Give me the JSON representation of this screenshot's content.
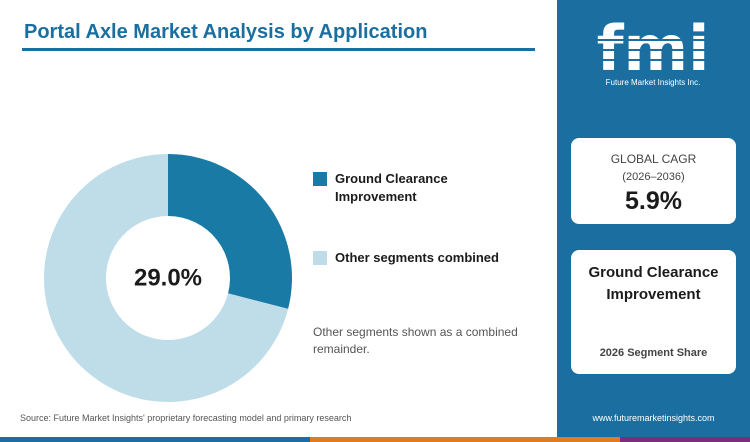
{
  "title": "Portal Axle Market Analysis by Application",
  "chart_data": {
    "type": "pie",
    "style": "donut",
    "categories": [
      "Ground Clearance Improvement",
      "Other segments combined"
    ],
    "values": [
      29.0,
      71.0
    ],
    "colors": [
      "#1a7aa6",
      "#bedde9"
    ],
    "center_label": "29.0%",
    "legend_position": "right"
  },
  "legend": [
    {
      "label": "Ground Clearance Improvement",
      "color": "#1a7aa6"
    },
    {
      "label": "Other segments combined",
      "color": "#bedde9"
    }
  ],
  "note": "Other segments shown as a combined remainder.",
  "source": "Source: Future Market Insights' proprietary forecasting model and primary research",
  "sidebar": {
    "logo_letters": "fmi",
    "logo_name": "Future Market Insights Inc.",
    "cagr_card": {
      "title": "GLOBAL CAGR",
      "period": "(2026–2036)",
      "value": "5.9%"
    },
    "segment_card": {
      "name": "Ground Clearance Improvement",
      "caption": "2026 Segment Share"
    },
    "website": "www.futuremarketinsights.com"
  },
  "colors": {
    "accent": "#1a6fa0",
    "bottom_bar": [
      "#1a6fa0",
      "#e07b1f",
      "#7a2f7a"
    ]
  }
}
